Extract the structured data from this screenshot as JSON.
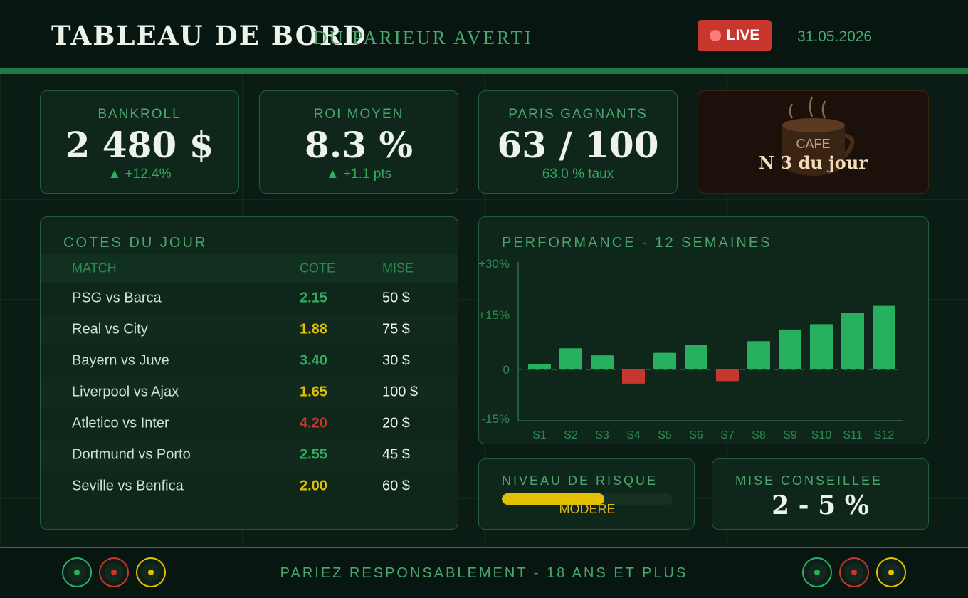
{
  "header": {
    "title": "TABLEAU DE BORD",
    "subtitle": "DU PARIEUR AVERTI",
    "live_label": "LIVE",
    "date": "31.05.2026"
  },
  "kpis": [
    {
      "label": "BANKROLL",
      "value": "2 480 $",
      "sub": "▲ +12.4%"
    },
    {
      "label": "ROI MOYEN",
      "value": "8.3 %",
      "sub": "▲ +1.1 pts"
    },
    {
      "label": "PARIS GAGNANTS",
      "value": "63 / 100",
      "sub": "63.0 % taux"
    }
  ],
  "coffee": {
    "label": "CAFE",
    "count": "N 3 du jour"
  },
  "odds": {
    "title": "COTES DU JOUR",
    "columns": [
      "MATCH",
      "COTE",
      "MISE"
    ],
    "rows": [
      {
        "match": "PSG vs Barca",
        "odd": "2.15",
        "stake": "50 $",
        "color": "#2fae5f"
      },
      {
        "match": "Real vs City",
        "odd": "1.88",
        "stake": "75 $",
        "color": "#e3c100"
      },
      {
        "match": "Bayern vs Juve",
        "odd": "3.40",
        "stake": "30 $",
        "color": "#2fae5f"
      },
      {
        "match": "Liverpool vs Ajax",
        "odd": "1.65",
        "stake": "100 $",
        "color": "#e3c100"
      },
      {
        "match": "Atletico vs Inter",
        "odd": "4.20",
        "stake": "20 $",
        "color": "#c8372e"
      },
      {
        "match": "Dortmund vs Porto",
        "odd": "2.55",
        "stake": "45 $",
        "color": "#2fae5f"
      },
      {
        "match": "Seville vs Benfica",
        "odd": "2.00",
        "stake": "60 $",
        "color": "#e3c100"
      }
    ]
  },
  "performance": {
    "title": "PERFORMANCE - 12 SEMAINES"
  },
  "risk": {
    "title": "NIVEAU DE RISQUE",
    "level_label": "MODERE",
    "level": 0.6
  },
  "advised": {
    "title": "MISE CONSEILLEE",
    "value": "2 - 5 %"
  },
  "footer": {
    "text": "PARIEZ RESPONSABLEMENT - 18 ANS ET PLUS"
  },
  "colors": {
    "positive": "#27b060",
    "negative": "#c8372e",
    "warning": "#e3c100",
    "accent": "#1f7a45"
  },
  "chart_data": {
    "type": "bar",
    "title": "PERFORMANCE - 12 SEMAINES",
    "categories": [
      "S1",
      "S2",
      "S3",
      "S4",
      "S5",
      "S6",
      "S7",
      "S8",
      "S9",
      "S10",
      "S11",
      "S12"
    ],
    "values": [
      1.5,
      6,
      4,
      -4,
      4.7,
      7,
      -3.3,
      8,
      11.3,
      12.8,
      16,
      18
    ],
    "yticks": [
      "+30%",
      "+15%",
      "0",
      "-15%"
    ],
    "ylim": [
      -15,
      30
    ],
    "xlabel": "",
    "ylabel": "",
    "grid": false
  }
}
